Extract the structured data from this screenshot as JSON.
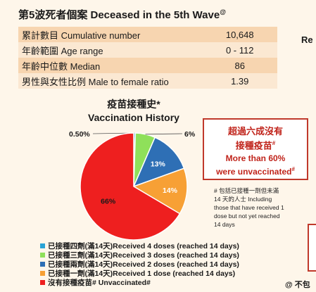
{
  "title": "第5波死者個案 Deceased in the 5th Wave",
  "title_mark": "@",
  "stats": [
    {
      "label": "累計數目 Cumulative number",
      "value": "10,648"
    },
    {
      "label": "年齡範圍 Age range",
      "value": "0 - 112"
    },
    {
      "label": "年齡中位數 Median",
      "value": "86"
    },
    {
      "label": "男性與女性比例 Male to female ratio",
      "value": "1.39"
    }
  ],
  "side_text": "Re",
  "chart_data": {
    "type": "pie",
    "title_lines": [
      "疫苗接種史*",
      "Vaccination History"
    ],
    "slices": [
      {
        "label": "0.50%",
        "value": 0.5,
        "color": "#29a3d6"
      },
      {
        "label": "6%",
        "value": 6,
        "color": "#8fe05a"
      },
      {
        "label": "13%",
        "value": 13,
        "color": "#2e6fb5"
      },
      {
        "label": "14%",
        "value": 14,
        "color": "#f7a035"
      },
      {
        "label": "66%",
        "value": 66.5,
        "color": "#ee1f1f"
      }
    ],
    "legend": [
      {
        "label": "已接種四劑(滿14天)Received 4 doses (reached 14 days)",
        "color": "#29a3d6"
      },
      {
        "label": "已接種三劑(滿14天)Received 3 doses (reached 14 days)",
        "color": "#8fe05a"
      },
      {
        "label": "已接種兩劑(滿14天)Received 2 doses (reached 14 days)",
        "color": "#2e6fb5"
      },
      {
        "label": "已接種一劑(滿14天)Received 1 dose (reached 14 days)",
        "color": "#f7a035"
      },
      {
        "label": "沒有接種疫苗# Unvaccinated#",
        "color": "#ee1f1f"
      }
    ]
  },
  "callout": {
    "zh_lines": [
      "超過六成沒有",
      "接種疫苗"
    ],
    "en_lines": [
      "More than 60%",
      "were unvaccinated"
    ],
    "mark": "#"
  },
  "footnote_lines": [
    "# 包括已接種一劑但未滿",
    "14 天的人士 Including",
    "those that have received 1",
    "dose but not yet reached",
    "14 days"
  ],
  "corner_text": "@ 不包"
}
